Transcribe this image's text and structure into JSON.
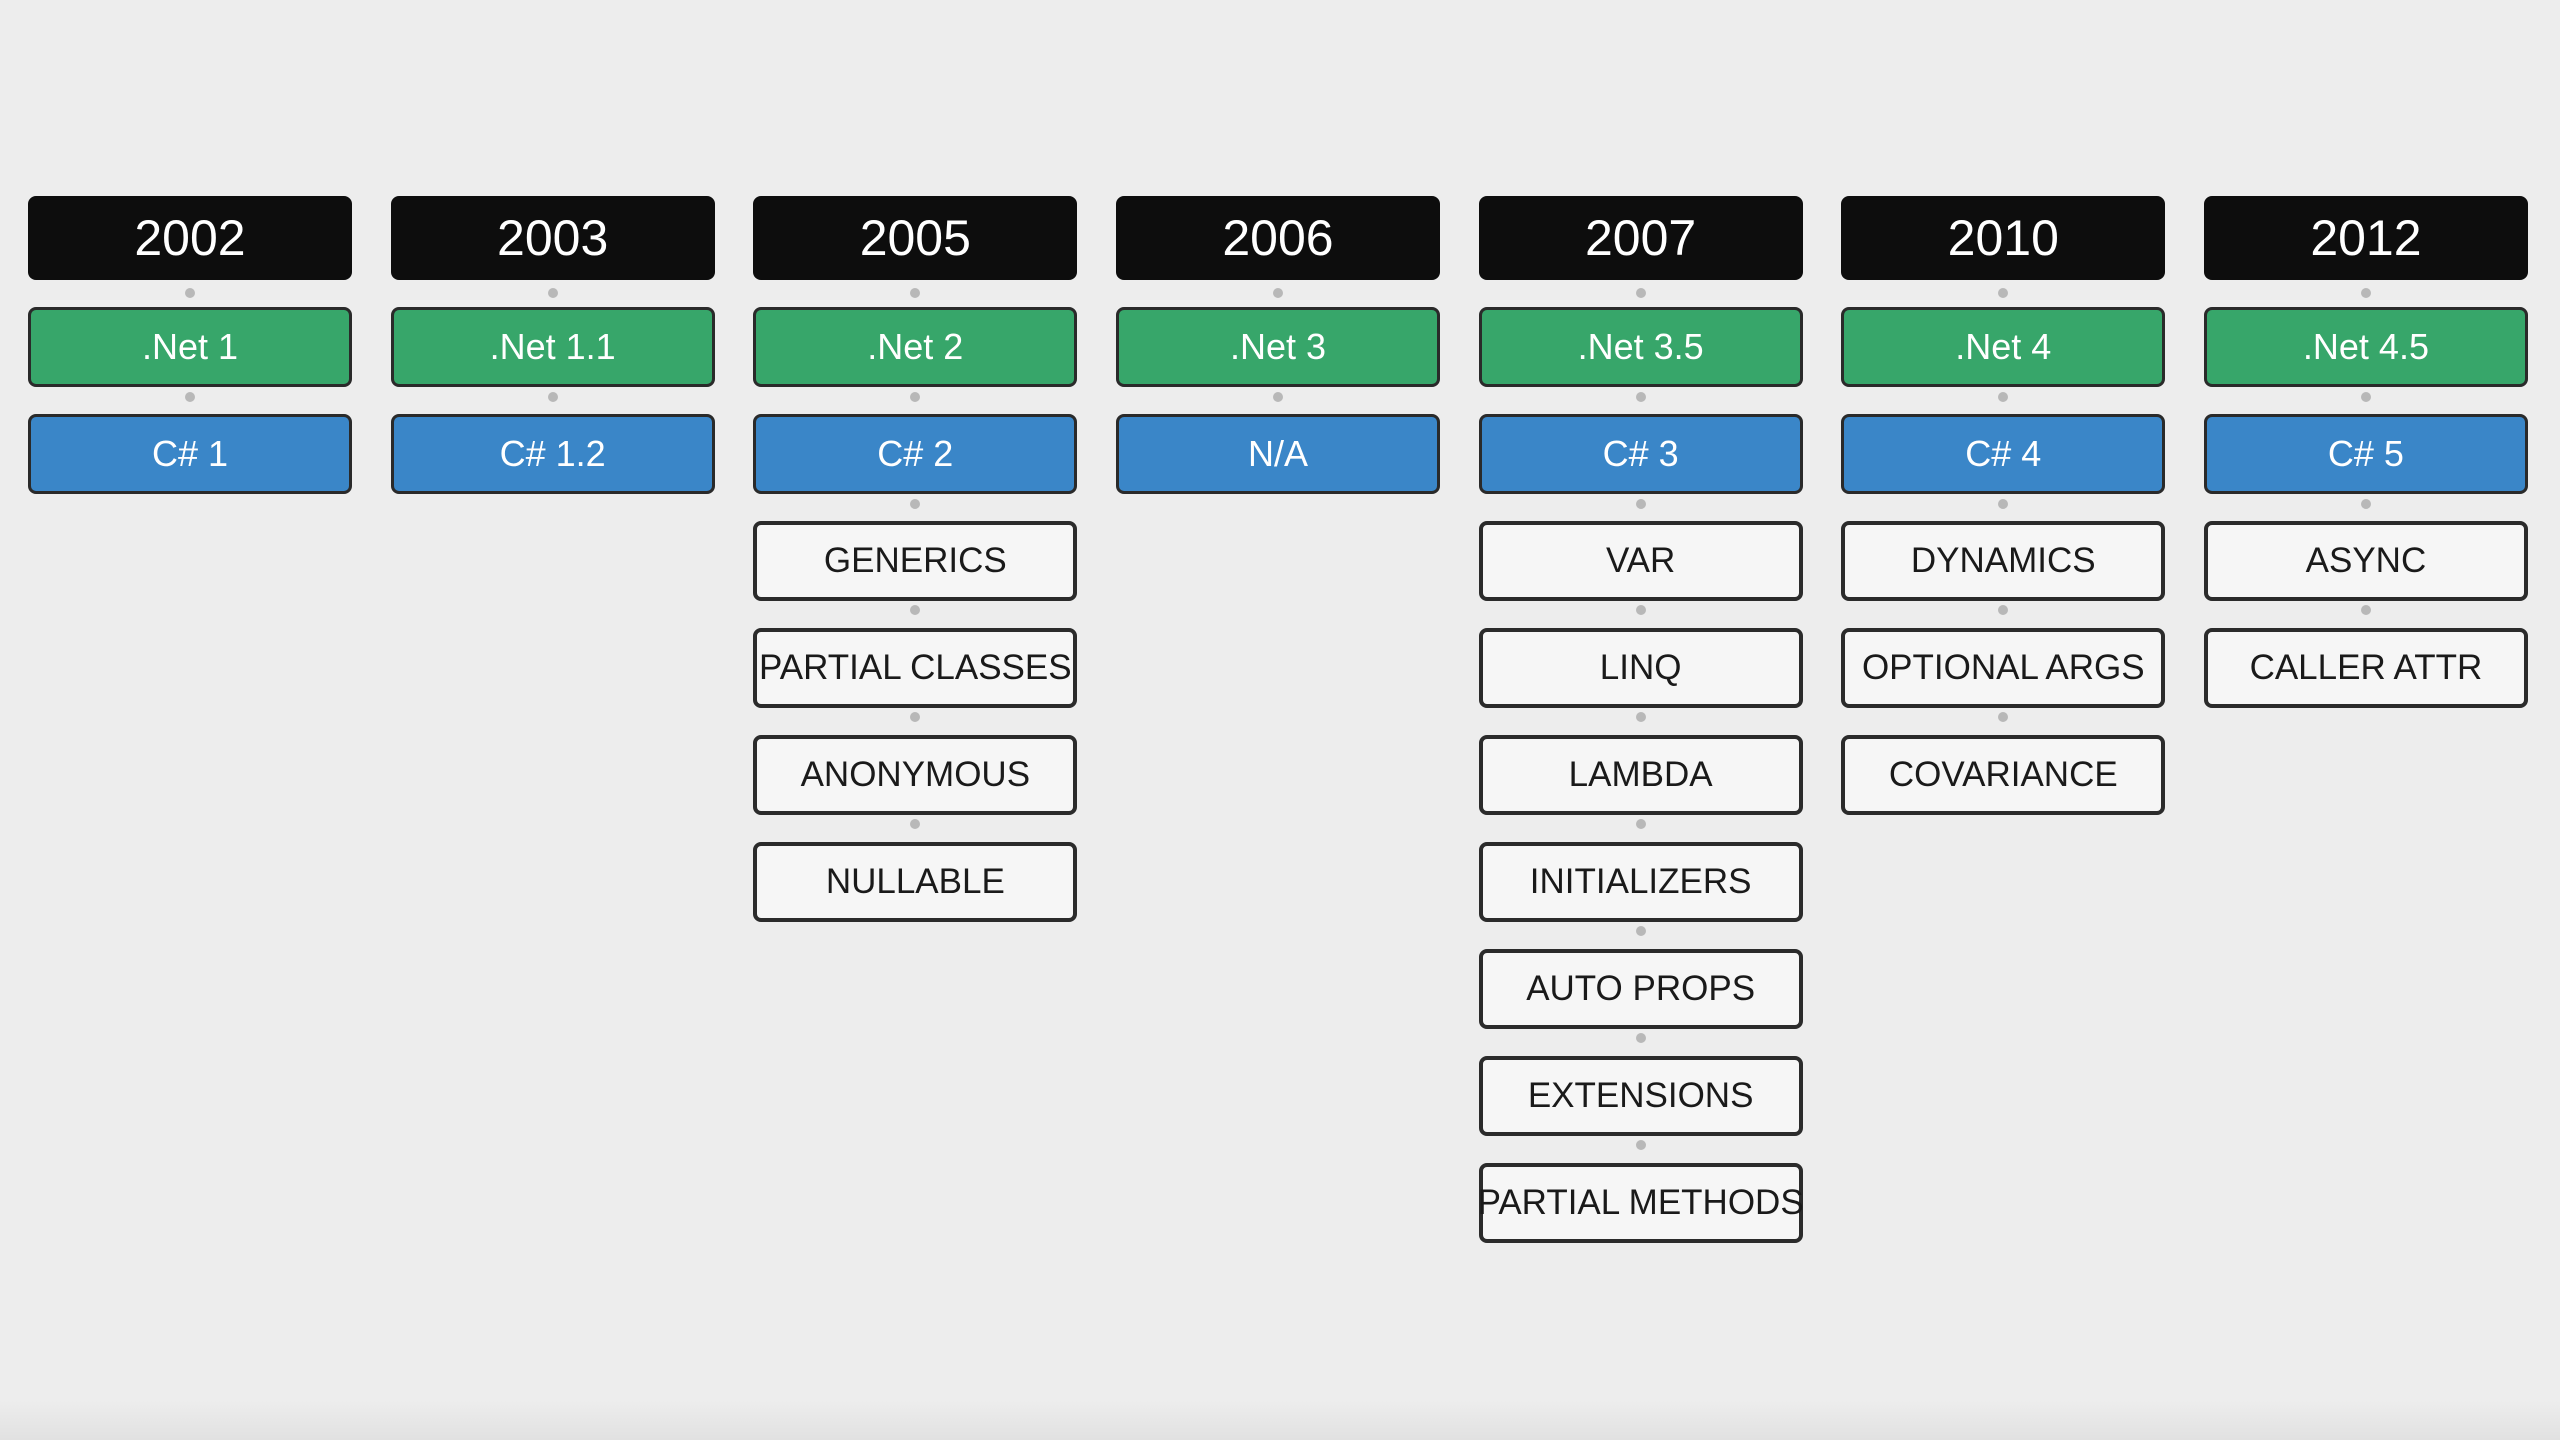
{
  "columns": [
    {
      "year": "2002",
      "dotnet": ".Net 1",
      "csharp": "C# 1",
      "features": []
    },
    {
      "year": "2003",
      "dotnet": ".Net 1.1",
      "csharp": "C# 1.2",
      "features": []
    },
    {
      "year": "2005",
      "dotnet": ".Net 2",
      "csharp": "C# 2",
      "features": [
        "GENERICS",
        "PARTIAL CLASSES",
        "ANONYMOUS",
        "NULLABLE"
      ]
    },
    {
      "year": "2006",
      "dotnet": ".Net 3",
      "csharp": "N/A",
      "features": []
    },
    {
      "year": "2007",
      "dotnet": ".Net 3.5",
      "csharp": "C# 3",
      "features": [
        "VAR",
        "LINQ",
        "LAMBDA",
        "INITIALIZERS",
        "AUTO PROPS",
        "EXTENSIONS",
        "PARTIAL METHODS"
      ]
    },
    {
      "year": "2010",
      "dotnet": ".Net 4",
      "csharp": "C# 4",
      "features": [
        "DYNAMICS",
        "OPTIONAL ARGS",
        "COVARIANCE"
      ]
    },
    {
      "year": "2012",
      "dotnet": ".Net 4.5",
      "csharp": "C# 5",
      "features": [
        "ASYNC",
        "CALLER ATTR"
      ]
    }
  ],
  "colors": {
    "year_bg": "#0d0d0d",
    "dotnet_bg": "#37a66a",
    "csharp_bg": "#3a86c8",
    "feature_bg": "#f6f6f6",
    "background": "#ededed"
  }
}
